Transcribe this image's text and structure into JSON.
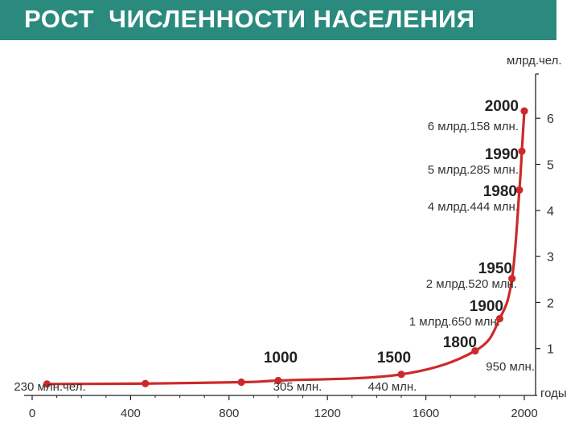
{
  "title": "РОСТ  ЧИСЛЕННОСТИ НАСЕЛЕНИЯ",
  "colors": {
    "title_bg": "#2a8a7d",
    "curve": "#cc2a2a",
    "axis": "#222222"
  },
  "chart_data": {
    "type": "line",
    "title": "РОСТ  ЧИСЛЕННОСТИ НАСЕЛЕНИЯ",
    "xlabel": "годы",
    "ylabel": "млрд.чел.",
    "xlim": [
      0,
      2000
    ],
    "ylim": [
      0,
      6.5
    ],
    "x_ticks": [
      0,
      400,
      800,
      1200,
      1600,
      2000
    ],
    "y_ticks": [
      1,
      2,
      3,
      4,
      5,
      6
    ],
    "grid": false,
    "series": [
      {
        "points": [
          {
            "x": 60,
            "y": 0.23
          },
          {
            "x": 460,
            "y": 0.24
          },
          {
            "x": 850,
            "y": 0.27
          },
          {
            "x": 1000,
            "y": 0.305
          },
          {
            "x": 1500,
            "y": 0.44
          },
          {
            "x": 1800,
            "y": 0.95
          },
          {
            "x": 1900,
            "y": 1.65
          },
          {
            "x": 1950,
            "y": 2.52
          },
          {
            "x": 1980,
            "y": 4.444
          },
          {
            "x": 1990,
            "y": 5.285
          },
          {
            "x": 2000,
            "y": 6.158
          }
        ]
      }
    ],
    "annotations": [
      {
        "year": "2000",
        "value": "6 млрд.158 млн."
      },
      {
        "year": "1990",
        "value": "5 млрд.285 млн."
      },
      {
        "year": "1980",
        "value": "4 млрд.444 млн."
      },
      {
        "year": "1950",
        "value": "2 млрд.520 млн."
      },
      {
        "year": "1900",
        "value": "1 млрд.650 млн."
      },
      {
        "year": "1800",
        "value": "950 млн."
      },
      {
        "year": "1500",
        "value": "440 млн."
      },
      {
        "year": "1000",
        "value": "305 млн."
      },
      {
        "year": "",
        "value": "230 млн.чел."
      }
    ]
  }
}
